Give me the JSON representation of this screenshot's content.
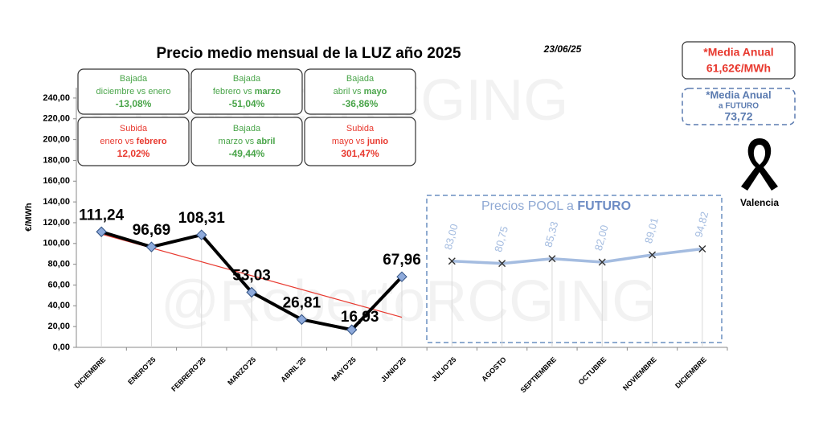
{
  "chart_data": {
    "type": "line",
    "title": "Precio medio mensual de la LUZ año 2025",
    "date": "23/06/25",
    "watermark": "@RobertoRCGING",
    "ylabel": "€/MWh",
    "categories": [
      "DICIEMBRE",
      "ENERO'25",
      "FEBRERO'25",
      "MARZO'25",
      "ABRIL'25",
      "MAYO'25",
      "JUNIO'25",
      "JULIO'25",
      "AGOSTO",
      "SEPTIEMBRE",
      "OCTUBRE",
      "NOVIEMBRE",
      "DICIEMBRE"
    ],
    "series": [
      {
        "name": "Precio medio",
        "color": "#000000",
        "marker_color": "#8eaadb",
        "values": [
          111.24,
          96.69,
          108.31,
          53.03,
          26.81,
          16.93,
          67.96,
          null,
          null,
          null,
          null,
          null,
          null
        ],
        "value_labels": [
          "111,24",
          "96,69",
          "108,31",
          "53,03",
          "26,81",
          "16,93",
          "67,96",
          null,
          null,
          null,
          null,
          null,
          null
        ]
      },
      {
        "name": "Precios POOL a FUTURO",
        "color": "#a4bce0",
        "marker_color": "#333333",
        "values": [
          null,
          null,
          null,
          null,
          null,
          null,
          null,
          83.0,
          80.75,
          85.33,
          82.0,
          89.01,
          94.82
        ],
        "value_labels": [
          null,
          null,
          null,
          null,
          null,
          null,
          null,
          "83,00",
          "80,75",
          "85,33",
          "82,00",
          "89,01",
          "94,82"
        ]
      }
    ],
    "trend": {
      "color": "#e8392f",
      "start": 109,
      "end": 29
    },
    "ylim": [
      0,
      250
    ],
    "yticks": [
      {
        "value": 0,
        "label": "0,00"
      },
      {
        "value": 20,
        "label": "20,00"
      },
      {
        "value": 40,
        "label": "40,00"
      },
      {
        "value": 60,
        "label": "60,00"
      },
      {
        "value": 80,
        "label": "80,00"
      },
      {
        "value": 100,
        "label": "100,00"
      },
      {
        "value": 120,
        "label": "120,00"
      },
      {
        "value": 140,
        "label": "140,00"
      },
      {
        "value": 160,
        "label": "160,00"
      },
      {
        "value": 180,
        "label": "180,00"
      },
      {
        "value": 200,
        "label": "200,00"
      },
      {
        "value": 220,
        "label": "220,00"
      },
      {
        "value": 240,
        "label": "240,00"
      }
    ],
    "future_box": {
      "title": "Precios POOL a ",
      "bold": "FUTURO"
    },
    "boxes": [
      {
        "head": "Bajada",
        "text": "diciembre vs enero",
        "bold": "",
        "pct": "-13,08%",
        "color": "#4aa54a"
      },
      {
        "head": "Bajada",
        "text": "febrero vs ",
        "bold": "marzo",
        "pct": "-51,04%",
        "color": "#4aa54a"
      },
      {
        "head": "Bajada",
        "text": "abril vs ",
        "bold": "mayo",
        "pct": "-36,86%",
        "color": "#4aa54a"
      },
      {
        "head": "Subida",
        "text": "enero vs ",
        "bold": "febrero",
        "pct": "12,02%",
        "color": "#e8392f"
      },
      {
        "head": "Bajada",
        "text": "marzo vs ",
        "bold": "abril",
        "pct": "-49,44%",
        "color": "#4aa54a"
      },
      {
        "head": "Subida",
        "text": "mayo vs ",
        "bold": "junio",
        "pct": "301,47%",
        "color": "#e8392f"
      }
    ],
    "annual": {
      "label": "*Media Anual",
      "value": "61,62€/MWh"
    },
    "annual_future": {
      "label": "*Media Anual",
      "sub": "a FUTURO",
      "value": "73,72"
    },
    "city": "Valencia"
  }
}
